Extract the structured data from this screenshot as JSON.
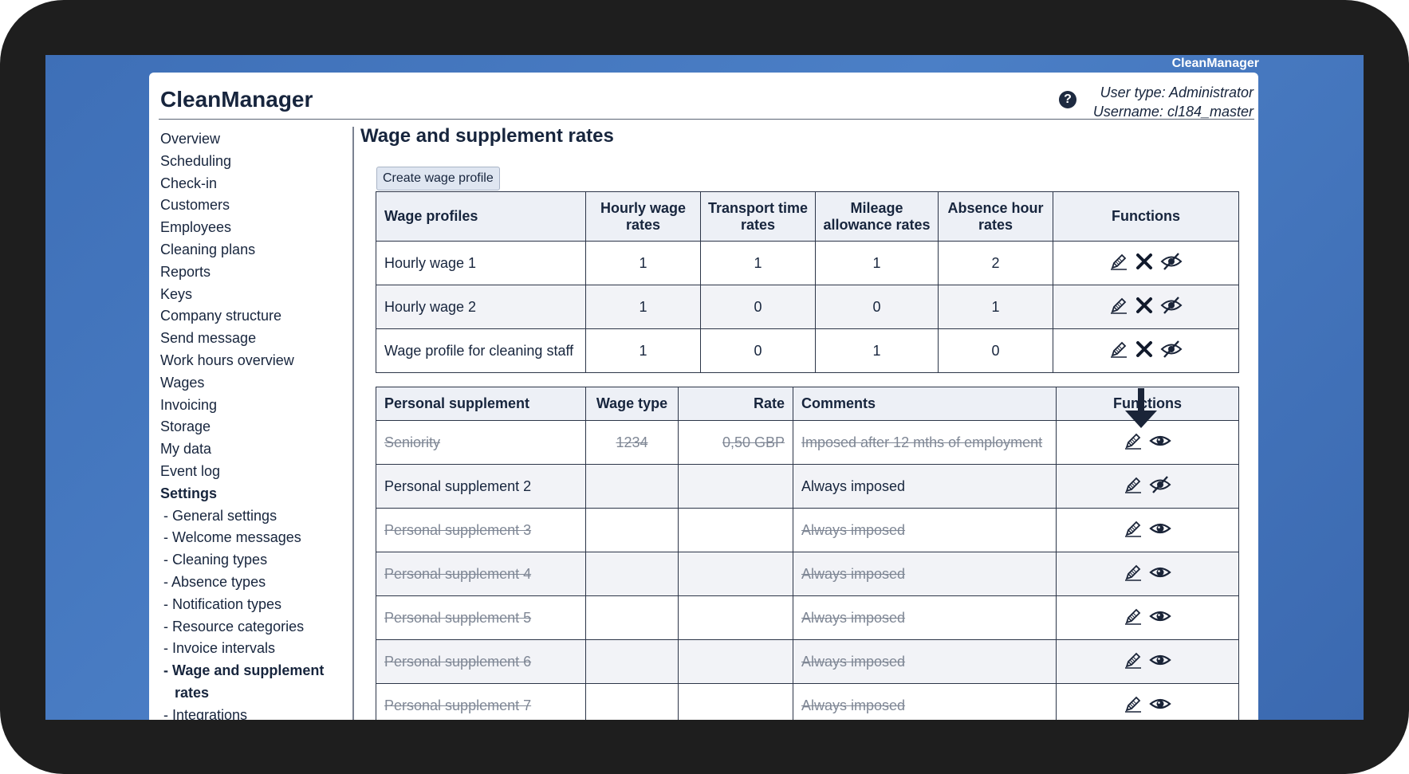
{
  "brand": "CleanManager",
  "header": {
    "title": "CleanManager",
    "user_type": "User type: Administrator",
    "username": "Username: cl184_master"
  },
  "sidebar": {
    "items": [
      "Overview",
      "Scheduling",
      "Check-in",
      "Customers",
      "Employees",
      "Cleaning plans",
      "Reports",
      "Keys",
      "Company structure",
      "Send message",
      "Work hours overview",
      "Wages",
      "Invoicing",
      "Storage",
      "My data",
      "Event log"
    ],
    "settings_label": "Settings",
    "sub_items": [
      "- General settings",
      "- Welcome messages",
      "- Cleaning types",
      "- Absence types",
      "- Notification types",
      "- Resource categories",
      "- Invoice intervals"
    ],
    "active_sub_item": "- Wage and supplement rates",
    "last_sub_item": "- Integrations"
  },
  "main": {
    "title": "Wage and supplement rates",
    "create_button": "Create wage profile"
  },
  "wage_table": {
    "headers": [
      "Wage profiles",
      "Hourly wage rates",
      "Transport time rates",
      "Mileage allowance rates",
      "Absence hour rates",
      "Functions"
    ],
    "rows": [
      {
        "name": "Hourly wage 1",
        "hourly": "1",
        "transport": "1",
        "mileage": "1",
        "absence": "2"
      },
      {
        "name": "Hourly wage 2",
        "hourly": "1",
        "transport": "0",
        "mileage": "0",
        "absence": "1"
      },
      {
        "name": "Wage profile for cleaning staff",
        "hourly": "1",
        "transport": "0",
        "mileage": "1",
        "absence": "0"
      }
    ]
  },
  "supplement_table": {
    "headers": [
      "Personal supplement",
      "Wage type",
      "Rate",
      "Comments",
      "Functions"
    ],
    "rows": [
      {
        "name": "Seniority",
        "wage_type": "1234",
        "rate": "0,50 GBP",
        "comment": "Imposed after 12 mths of employment",
        "hidden": true
      },
      {
        "name": "Personal supplement 2",
        "wage_type": "",
        "rate": "",
        "comment": "Always imposed",
        "hidden": false
      },
      {
        "name": "Personal supplement 3",
        "wage_type": "",
        "rate": "",
        "comment": "Always imposed",
        "hidden": true
      },
      {
        "name": "Personal supplement 4",
        "wage_type": "",
        "rate": "",
        "comment": "Always imposed",
        "hidden": true
      },
      {
        "name": "Personal supplement 5",
        "wage_type": "",
        "rate": "",
        "comment": "Always imposed",
        "hidden": true
      },
      {
        "name": "Personal supplement 6",
        "wage_type": "",
        "rate": "",
        "comment": "Always imposed",
        "hidden": true
      },
      {
        "name": "Personal supplement 7",
        "wage_type": "",
        "rate": "",
        "comment": "Always imposed",
        "hidden": true
      }
    ]
  },
  "icons": {
    "edit": "pencil-icon",
    "delete": "close-icon",
    "show": "eye-icon",
    "hide": "eye-slash-icon",
    "help": "question-circle-icon",
    "marker": "arrow-down-icon"
  },
  "colors": {
    "desktop": "#4473bb",
    "text": "#17253d",
    "header_bg": "#edf0f6",
    "struck_text": "#7f8795"
  }
}
